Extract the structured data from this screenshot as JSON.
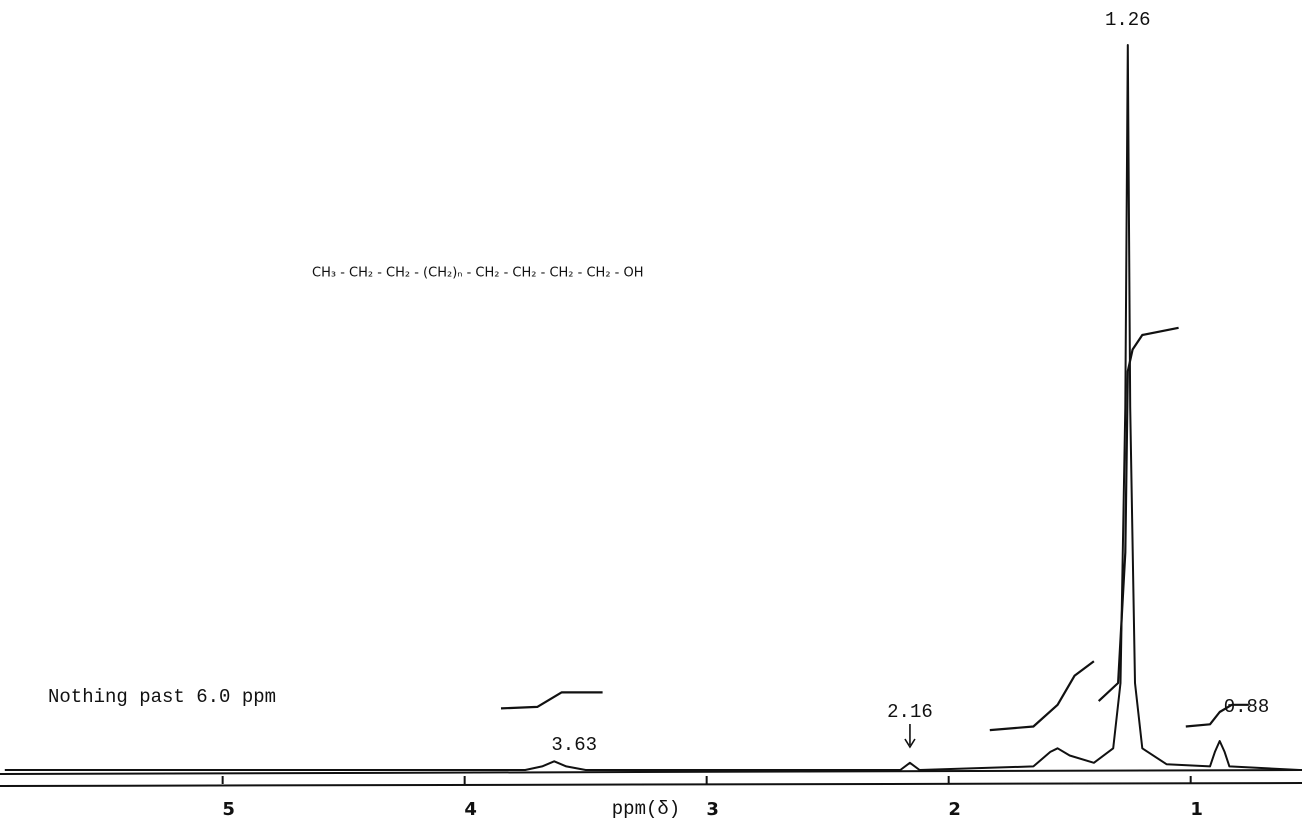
{
  "chart_data": {
    "type": "line",
    "formula": "CH₃ - CH₂ - CH₂ - (CH₂)ₙ - CH₂ - CH₂ - CH₂ - CH₂ - OH",
    "note": "Nothing past 6.0 ppm",
    "xlabel": "ppm(δ)",
    "xlim": [
      5.92,
      0.54
    ],
    "ylim": [
      0,
      100
    ],
    "xticks": [
      5,
      4,
      3,
      2,
      1
    ],
    "peak_labels": [
      3.63,
      2.16,
      1.26,
      0.88
    ],
    "color": "#111111",
    "series": [
      {
        "x": [
          5.9,
          3.75,
          3.68,
          3.63,
          3.58,
          3.5,
          2.2,
          2.16,
          2.12,
          1.65,
          1.58,
          1.55,
          1.5,
          1.4,
          1.32,
          1.29,
          1.27,
          1.26,
          1.25,
          1.23,
          1.2,
          1.1,
          0.92,
          0.9,
          0.88,
          0.86,
          0.84,
          0.55
        ],
        "values": [
          0,
          0,
          0.5,
          1.2,
          0.5,
          0,
          0,
          1,
          0,
          0.5,
          2.5,
          3,
          2,
          1,
          3,
          12,
          50,
          100,
          50,
          12,
          3,
          0.8,
          0.5,
          2.5,
          4,
          2.5,
          0.5,
          0
        ]
      },
      {
        "x": [
          3.85,
          3.7,
          3.65,
          3.6,
          3.43
        ],
        "values": [
          8.5,
          8.7,
          9.7,
          10.7,
          10.7
        ]
      },
      {
        "x": [
          1.83,
          1.65,
          1.55,
          1.48,
          1.4
        ],
        "values": [
          5.5,
          6,
          9,
          13,
          15
        ]
      },
      {
        "x": [
          1.38,
          1.3,
          1.27,
          1.26,
          1.24,
          1.2,
          1.05
        ],
        "values": [
          9.5,
          12,
          30,
          55,
          58,
          60,
          61
        ]
      },
      {
        "x": [
          1.02,
          0.92,
          0.88,
          0.83,
          0.76
        ],
        "values": [
          6,
          6.3,
          8,
          9,
          9
        ]
      }
    ]
  }
}
